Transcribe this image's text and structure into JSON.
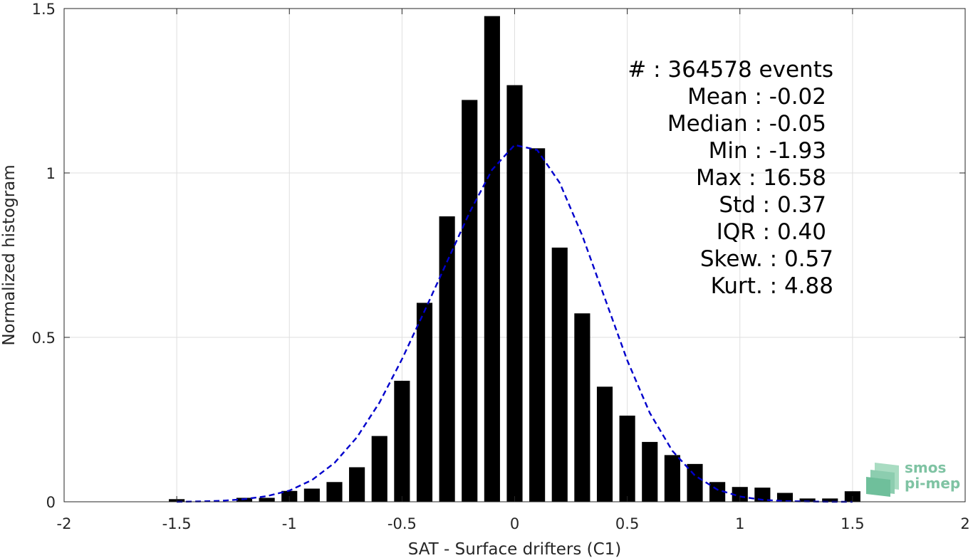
{
  "chart_data": {
    "type": "bar",
    "xlabel": "SAT - Surface drifters (C1)",
    "ylabel": "Normalized histogram",
    "xlim": [
      -2,
      2
    ],
    "ylim": [
      0,
      1.5
    ],
    "x_ticks": [
      -2,
      -1.5,
      -1,
      -0.5,
      0,
      0.5,
      1,
      1.5,
      2
    ],
    "x_tick_labels": [
      "-2",
      "-1.5",
      "-1",
      "-0.5",
      "0",
      "0.5",
      "1",
      "1.5",
      "2"
    ],
    "y_ticks": [
      0,
      0.5,
      1,
      1.5
    ],
    "y_tick_labels": [
      "0",
      "0.5",
      "1",
      "1.5"
    ],
    "grid": true,
    "bar_color": "#000000",
    "fit_color": "#0000cc",
    "bar_width": 0.07,
    "series": [
      {
        "type": "bar",
        "x": [
          -1.5,
          -1.2,
          -1.1,
          -1.0,
          -0.9,
          -0.8,
          -0.7,
          -0.6,
          -0.5,
          -0.4,
          -0.3,
          -0.2,
          -0.1,
          0.0,
          0.1,
          0.2,
          0.3,
          0.4,
          0.5,
          0.6,
          0.7,
          0.8,
          0.9,
          1.0,
          1.1,
          1.2,
          1.3,
          1.4,
          1.5
        ],
        "values": [
          0.008,
          0.012,
          0.012,
          0.033,
          0.04,
          0.06,
          0.105,
          0.2,
          0.368,
          0.605,
          0.868,
          1.222,
          1.477,
          1.267,
          1.075,
          0.773,
          0.573,
          0.35,
          0.262,
          0.182,
          0.142,
          0.115,
          0.06,
          0.045,
          0.043,
          0.027,
          0.01,
          0.01,
          0.032
        ]
      },
      {
        "type": "line",
        "style": "dashed",
        "x": [
          -1.5,
          -1.4,
          -1.3,
          -1.2,
          -1.1,
          -1.0,
          -0.9,
          -0.8,
          -0.7,
          -0.6,
          -0.5,
          -0.4,
          -0.3,
          -0.2,
          -0.1,
          0.0,
          0.1,
          0.2,
          0.3,
          0.4,
          0.5,
          0.6,
          0.7,
          0.8,
          0.9,
          1.0,
          1.1,
          1.2,
          1.3,
          1.4,
          1.5
        ],
        "values": [
          0.0,
          0.001,
          0.003,
          0.008,
          0.017,
          0.034,
          0.066,
          0.118,
          0.196,
          0.302,
          0.434,
          0.58,
          0.73,
          0.88,
          1.01,
          1.085,
          1.07,
          0.97,
          0.81,
          0.62,
          0.43,
          0.27,
          0.155,
          0.08,
          0.037,
          0.016,
          0.006,
          0.002,
          0.001,
          0.0,
          0.0
        ]
      }
    ],
    "annotation_lines": [
      "#  : 364578 events",
      "Mean : -0.02",
      "Median : -0.05",
      "Min : -1.93",
      "Max : 16.58",
      "Std : 0.37",
      "IQR : 0.40",
      "Skew. : 0.57",
      "Kurt. : 4.88"
    ]
  },
  "logo": {
    "line1": "smos",
    "line2": "pi-mep"
  }
}
